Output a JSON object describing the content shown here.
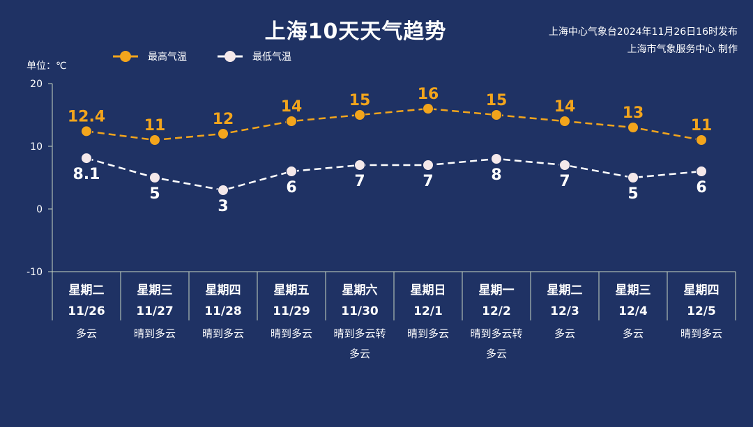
{
  "header": {
    "title": "上海10天天气趋势",
    "issuer_line1": "上海中心气象台2024年11月26日16时发布",
    "issuer_line2": "上海市气象服务中心 制作"
  },
  "chart_data": {
    "type": "line",
    "title": "上海10天天气趋势",
    "ylabel": "单位：℃",
    "ylim": [
      -10,
      20
    ],
    "yticks": [
      20,
      10,
      0,
      -10
    ],
    "grid": false,
    "legend": "top-left",
    "colors": {
      "high": "#f3a51c",
      "low": "#ffffff",
      "background": "#1f3264"
    },
    "categories": [
      {
        "weekday": "星期二",
        "date": "11/26",
        "weather": [
          "多云"
        ]
      },
      {
        "weekday": "星期三",
        "date": "11/27",
        "weather": [
          "晴到多云"
        ]
      },
      {
        "weekday": "星期四",
        "date": "11/28",
        "weather": [
          "晴到多云"
        ]
      },
      {
        "weekday": "星期五",
        "date": "11/29",
        "weather": [
          "晴到多云"
        ]
      },
      {
        "weekday": "星期六",
        "date": "11/30",
        "weather": [
          "晴到多云转",
          "多云"
        ]
      },
      {
        "weekday": "星期日",
        "date": "12/1",
        "weather": [
          "晴到多云"
        ]
      },
      {
        "weekday": "星期一",
        "date": "12/2",
        "weather": [
          "晴到多云转",
          "多云"
        ]
      },
      {
        "weekday": "星期二",
        "date": "12/3",
        "weather": [
          "多云"
        ]
      },
      {
        "weekday": "星期三",
        "date": "12/4",
        "weather": [
          "多云"
        ]
      },
      {
        "weekday": "星期四",
        "date": "12/5",
        "weather": [
          "晴到多云"
        ]
      }
    ],
    "series": [
      {
        "name": "最高气温",
        "key": "high",
        "values": [
          12.4,
          11,
          12,
          14,
          15,
          16,
          15,
          14,
          13,
          11
        ]
      },
      {
        "name": "最低气温",
        "key": "low",
        "values": [
          8.1,
          5,
          3,
          6,
          7,
          7,
          8,
          7,
          5,
          6
        ]
      }
    ]
  }
}
